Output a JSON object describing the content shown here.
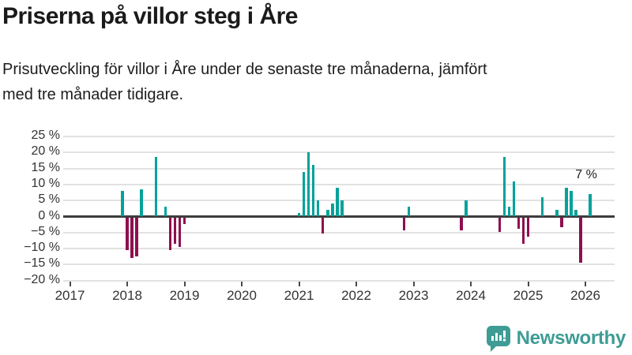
{
  "header": {
    "title": "Priserna på villor steg i Åre",
    "subtitle_line1": "Prisutveckling för villor i Åre under de senaste tre månaderna, jämfört",
    "subtitle_line2": "med tre månader tidigare."
  },
  "chart_data": {
    "type": "bar",
    "title": "Priserna på villor steg i Åre",
    "unit": "%",
    "ylim": [
      -20,
      25
    ],
    "ytick_step": 5,
    "grid": true,
    "yticks": [
      {
        "value": 25,
        "label": "25 %"
      },
      {
        "value": 20,
        "label": "20 %"
      },
      {
        "value": 15,
        "label": "15 %"
      },
      {
        "value": 10,
        "label": "10 %"
      },
      {
        "value": 5,
        "label": "5 %"
      },
      {
        "value": 0,
        "label": "0 %"
      },
      {
        "value": -5,
        "label": "−5 %"
      },
      {
        "value": -10,
        "label": "−10 %"
      },
      {
        "value": -15,
        "label": "−15 %"
      },
      {
        "value": -20,
        "label": "−20 %"
      }
    ],
    "years": [
      "2017",
      "2018",
      "2019",
      "2020",
      "2021",
      "2022",
      "2023",
      "2024",
      "2025",
      "2026"
    ],
    "bars": [
      {
        "month": "2017-12",
        "value": 8
      },
      {
        "month": "2018-01",
        "value": -10
      },
      {
        "month": "2018-02",
        "value": -12.5
      },
      {
        "month": "2018-03",
        "value": -12
      },
      {
        "month": "2018-04",
        "value": 8.5
      },
      {
        "month": "2018-07",
        "value": 18.5
      },
      {
        "month": "2018-09",
        "value": 3
      },
      {
        "month": "2018-10",
        "value": -10
      },
      {
        "month": "2018-11",
        "value": -8
      },
      {
        "month": "2018-12",
        "value": -9
      },
      {
        "month": "2019-01",
        "value": -2
      },
      {
        "month": "2021-01",
        "value": 1
      },
      {
        "month": "2021-02",
        "value": 14
      },
      {
        "month": "2021-03",
        "value": 20
      },
      {
        "month": "2021-04",
        "value": 16
      },
      {
        "month": "2021-05",
        "value": 5
      },
      {
        "month": "2021-06",
        "value": -5
      },
      {
        "month": "2021-07",
        "value": 2
      },
      {
        "month": "2021-08",
        "value": 4
      },
      {
        "month": "2021-09",
        "value": 9
      },
      {
        "month": "2021-10",
        "value": 5
      },
      {
        "month": "2022-11",
        "value": -4
      },
      {
        "month": "2022-12",
        "value": 3
      },
      {
        "month": "2023-11",
        "value": -4
      },
      {
        "month": "2023-12",
        "value": 5
      },
      {
        "month": "2024-07",
        "value": -4.5
      },
      {
        "month": "2024-08",
        "value": 18.5
      },
      {
        "month": "2024-09",
        "value": 3
      },
      {
        "month": "2024-10",
        "value": 11
      },
      {
        "month": "2024-11",
        "value": -3.5
      },
      {
        "month": "2024-12",
        "value": -8
      },
      {
        "month": "2025-01",
        "value": -6
      },
      {
        "month": "2025-04",
        "value": 6
      },
      {
        "month": "2025-07",
        "value": 2
      },
      {
        "month": "2025-08",
        "value": -3
      },
      {
        "month": "2025-09",
        "value": 9
      },
      {
        "month": "2025-10",
        "value": 8
      },
      {
        "month": "2025-11",
        "value": 2
      },
      {
        "month": "2025-12",
        "value": -14
      },
      {
        "month": "2026-02",
        "value": 7
      }
    ],
    "annotation": {
      "text": "7 %",
      "month": "2026-02",
      "value": 7
    },
    "colors": {
      "positive": "#00a29b",
      "negative": "#8e0f4f",
      "grid": "#e2e2e2",
      "zero_line": "#3d3d3d",
      "axis_text": "#333333"
    }
  },
  "footer": {
    "brand": "Newsworthy",
    "brand_color": "#3e9c95",
    "logo_icon": "newsworthy-speech-bubble-bars-exclamation"
  }
}
